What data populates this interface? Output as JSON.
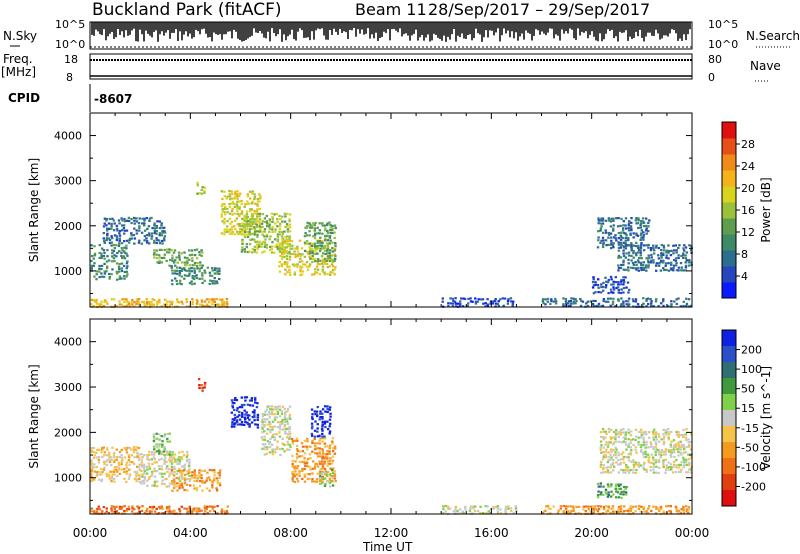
{
  "header": {
    "station": "Buckland Park (fitACF)",
    "beam": "Beam 11",
    "date_range": "28/Sep/2017 – 29/Sep/2017"
  },
  "noise_panel": {
    "left_label": "N.Sky",
    "right_label": "N.Search",
    "tick_top_left": "10^5",
    "tick_bottom_left": "10^0",
    "tick_top_right": "10^5",
    "tick_bottom_right": "10^0"
  },
  "freq_panel": {
    "left_label_line1": "Freq.",
    "left_label_line2": "[MHz]",
    "tick_top_left": "18",
    "tick_bottom_left": "8",
    "right_label": "Nave",
    "tick_top_right": "80",
    "tick_bottom_right": "0"
  },
  "cpid_panel": {
    "label": "CPID",
    "value": "-8607"
  },
  "chart_data": [
    {
      "type": "heatmap",
      "name": "power",
      "ylabel": "Slant Range [km]",
      "ylim": [
        200,
        4500
      ],
      "yticks": [
        1000,
        2000,
        3000,
        4000
      ],
      "colorbar_label": "Power [dB]",
      "colorbar_ticks": [
        "4",
        "8",
        "12",
        "16",
        "20",
        "24",
        "28"
      ],
      "colorbar_colors": [
        "#0a1aff",
        "#2646c0",
        "#2d6e8e",
        "#3c8a66",
        "#5f9e4c",
        "#9ac13a",
        "#d8d41e",
        "#f5b21a",
        "#f08a18",
        "#e65016",
        "#e11010"
      ],
      "blobs": [
        {
          "t0": 0.0,
          "t1": 1.5,
          "r0": 800,
          "r1": 1600,
          "c": 3
        },
        {
          "t0": 0.5,
          "t1": 3.0,
          "r0": 1600,
          "r1": 2200,
          "c": 2
        },
        {
          "t0": 2.5,
          "t1": 4.5,
          "r0": 1100,
          "r1": 1500,
          "c": 4
        },
        {
          "t0": 3.2,
          "t1": 5.2,
          "r0": 700,
          "r1": 1100,
          "c": 3
        },
        {
          "t0": 4.2,
          "t1": 4.6,
          "r0": 2700,
          "r1": 3000,
          "c": 5
        },
        {
          "t0": 5.2,
          "t1": 6.8,
          "r0": 1800,
          "r1": 2800,
          "c": 6
        },
        {
          "t0": 6.0,
          "t1": 8.0,
          "r0": 1400,
          "r1": 2300,
          "c": 5
        },
        {
          "t0": 7.5,
          "t1": 9.8,
          "r0": 900,
          "r1": 1700,
          "c": 6
        },
        {
          "t0": 8.5,
          "t1": 9.8,
          "r0": 1200,
          "r1": 2100,
          "c": 4
        },
        {
          "t0": 20.2,
          "t1": 22.3,
          "r0": 1500,
          "r1": 2200,
          "c": 2
        },
        {
          "t0": 21.0,
          "t1": 24.0,
          "r0": 1000,
          "r1": 1600,
          "c": 2
        },
        {
          "t0": 20.0,
          "t1": 21.5,
          "r0": 500,
          "r1": 900,
          "c": 1
        },
        {
          "t0": 0.0,
          "t1": 5.5,
          "r0": 200,
          "r1": 400,
          "c": 7
        },
        {
          "t0": 14.0,
          "t1": 17.0,
          "r0": 200,
          "r1": 420,
          "c": 1
        },
        {
          "t0": 18.0,
          "t1": 24.0,
          "r0": 200,
          "r1": 420,
          "c": 2
        }
      ]
    },
    {
      "type": "heatmap",
      "name": "velocity",
      "ylabel": "Slant Range [km]",
      "ylim": [
        200,
        4500
      ],
      "yticks": [
        1000,
        2000,
        3000,
        4000
      ],
      "colorbar_label": "Velocity [m s^-1]",
      "colorbar_ticks": [
        "200",
        "100",
        "50",
        "15",
        "-15",
        "-50",
        "-100",
        "-200"
      ],
      "colorbar_colors": [
        "#1020e0",
        "#2a4fc8",
        "#2f6e72",
        "#3f9a3d",
        "#7fd04a",
        "#c8c8c8",
        "#f5c24a",
        "#f59a20",
        "#f07018",
        "#e04010",
        "#e01010"
      ],
      "blobs": [
        {
          "t0": 0.0,
          "t1": 2.0,
          "r0": 900,
          "r1": 1700,
          "c": 6
        },
        {
          "t0": 2.0,
          "t1": 4.0,
          "r0": 800,
          "r1": 1600,
          "c": 5
        },
        {
          "t0": 3.2,
          "t1": 5.2,
          "r0": 700,
          "r1": 1200,
          "c": 7
        },
        {
          "t0": 2.5,
          "t1": 3.2,
          "r0": 1500,
          "r1": 2000,
          "c": 4
        },
        {
          "t0": 4.3,
          "t1": 4.6,
          "r0": 2900,
          "r1": 3200,
          "c": 9
        },
        {
          "t0": 5.6,
          "t1": 6.7,
          "r0": 2100,
          "r1": 2800,
          "c": 0
        },
        {
          "t0": 6.8,
          "t1": 8.0,
          "r0": 1500,
          "r1": 2600,
          "c": 5
        },
        {
          "t0": 8.0,
          "t1": 9.8,
          "r0": 900,
          "r1": 1900,
          "c": 7
        },
        {
          "t0": 8.8,
          "t1": 9.6,
          "r0": 1900,
          "r1": 2600,
          "c": 0
        },
        {
          "t0": 9.1,
          "t1": 9.7,
          "r0": 800,
          "r1": 1200,
          "c": 4
        },
        {
          "t0": 20.3,
          "t1": 24.0,
          "r0": 1100,
          "r1": 2100,
          "c": 5
        },
        {
          "t0": 20.2,
          "t1": 21.4,
          "r0": 550,
          "r1": 900,
          "c": 3
        },
        {
          "t0": 0.0,
          "t1": 5.5,
          "r0": 200,
          "r1": 400,
          "c": 8
        },
        {
          "t0": 14.0,
          "t1": 17.0,
          "r0": 200,
          "r1": 400,
          "c": 5
        },
        {
          "t0": 18.0,
          "t1": 24.0,
          "r0": 200,
          "r1": 400,
          "c": 7
        }
      ]
    }
  ],
  "time_axis": {
    "xlabel": "Time UT",
    "ticks": [
      "00:00",
      "04:00",
      "08:00",
      "12:00",
      "16:00",
      "20:00",
      "00:00"
    ]
  }
}
